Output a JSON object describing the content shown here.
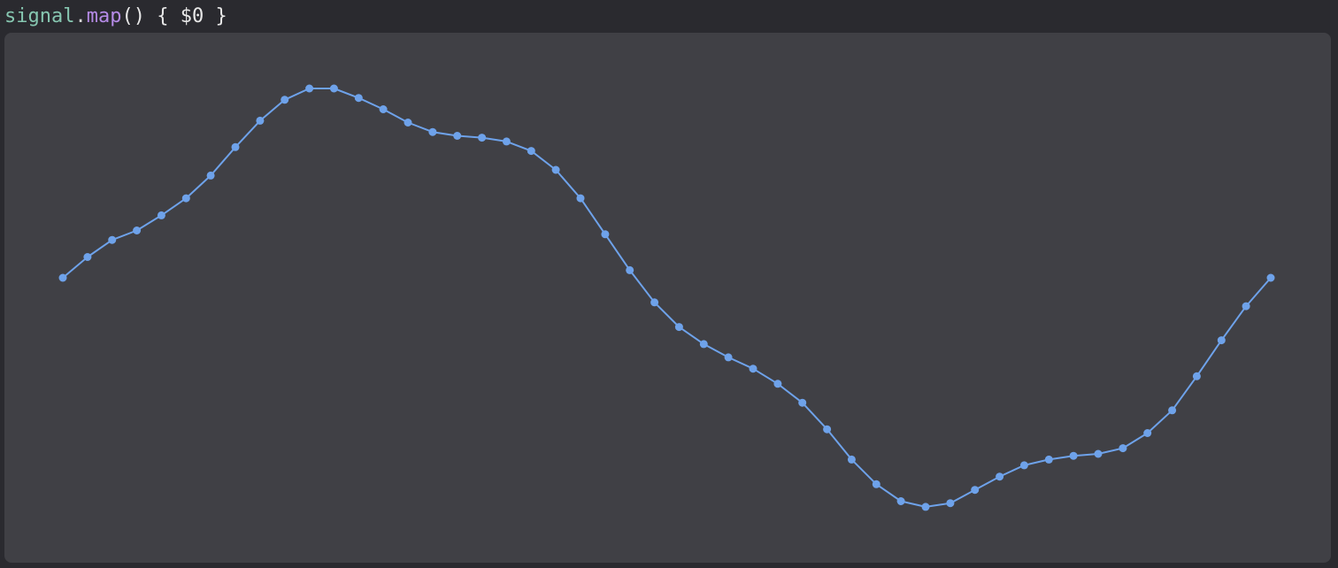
{
  "code": {
    "receiver": "signal",
    "dot": ".",
    "method": "map",
    "rest": "() { $0 }"
  },
  "colors": {
    "background": "#2a2a2f",
    "panel": "#404045",
    "series": "#6ea2ea",
    "identifier": "#86c6b0",
    "method": "#b58ae6"
  },
  "chart_data": {
    "type": "line",
    "series": [
      {
        "values": [
          0.0,
          0.11,
          0.2,
          0.25,
          0.33,
          0.42,
          0.54,
          0.69,
          0.83,
          0.94,
          1.0,
          1.0,
          0.95,
          0.89,
          0.82,
          0.77,
          0.75,
          0.74,
          0.72,
          0.67,
          0.57,
          0.42,
          0.23,
          0.04,
          -0.13,
          -0.26,
          -0.35,
          -0.42,
          -0.48,
          -0.56,
          -0.66,
          -0.8,
          -0.96,
          -1.09,
          -1.18,
          -1.21,
          -1.19,
          -1.12,
          -1.05,
          -0.99,
          -0.96,
          -0.94,
          -0.93,
          -0.9,
          -0.82,
          -0.7,
          -0.52,
          -0.33,
          -0.15,
          0.0
        ]
      }
    ]
  }
}
